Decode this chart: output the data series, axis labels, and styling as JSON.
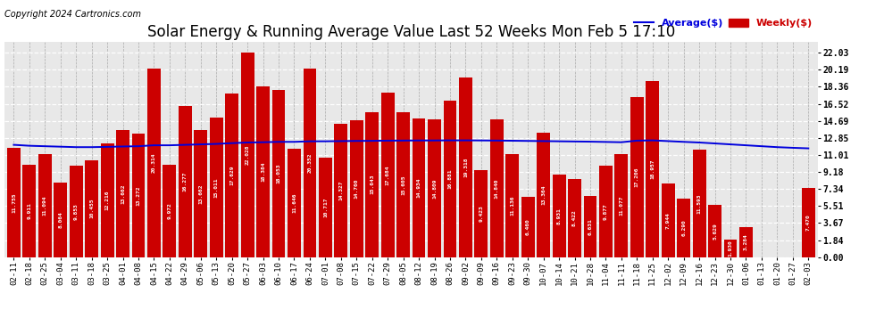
{
  "title": "Solar Energy & Running Average Value Last 52 Weeks Mon Feb 5 17:10",
  "copyright": "Copyright 2024 Cartronics.com",
  "categories": [
    "02-11",
    "02-18",
    "02-25",
    "03-04",
    "03-11",
    "03-18",
    "03-25",
    "04-01",
    "04-08",
    "04-15",
    "04-22",
    "04-29",
    "05-06",
    "05-13",
    "05-20",
    "05-27",
    "06-03",
    "06-10",
    "06-17",
    "06-24",
    "07-01",
    "07-08",
    "07-15",
    "07-22",
    "07-29",
    "08-05",
    "08-12",
    "08-19",
    "08-26",
    "09-02",
    "09-09",
    "09-16",
    "09-23",
    "09-30",
    "10-07",
    "10-14",
    "10-21",
    "10-28",
    "11-04",
    "11-11",
    "11-18",
    "11-25",
    "12-02",
    "12-09",
    "12-16",
    "12-23",
    "12-30",
    "01-06",
    "01-13",
    "01-20",
    "01-27",
    "02-03"
  ],
  "bar_values": [
    11.755,
    9.911,
    11.094,
    8.064,
    9.853,
    10.455,
    12.216,
    13.662,
    13.272,
    20.314,
    9.972,
    16.277,
    13.662,
    15.011,
    17.629,
    22.028,
    18.384,
    18.053,
    11.646,
    20.352,
    10.717,
    14.327,
    14.76,
    15.643,
    17.684,
    15.605,
    14.934,
    14.809,
    16.881,
    19.318,
    9.423,
    14.84,
    11.136,
    6.46,
    13.364,
    8.931,
    8.422,
    6.631,
    9.877,
    11.077,
    17.206,
    18.957,
    7.944,
    6.29,
    11.593,
    5.629,
    1.93,
    3.284,
    0.0,
    0.0,
    0.013,
    7.47
  ],
  "avg_values": [
    12.1,
    12.0,
    11.95,
    11.9,
    11.85,
    11.85,
    11.88,
    11.92,
    11.95,
    12.05,
    12.05,
    12.1,
    12.15,
    12.2,
    12.28,
    12.35,
    12.38,
    12.42,
    12.42,
    12.48,
    12.48,
    12.5,
    12.52,
    12.53,
    12.55,
    12.56,
    12.57,
    12.57,
    12.58,
    12.58,
    12.57,
    12.56,
    12.54,
    12.52,
    12.5,
    12.48,
    12.46,
    12.44,
    12.41,
    12.38,
    12.55,
    12.58,
    12.5,
    12.42,
    12.35,
    12.25,
    12.15,
    12.05,
    11.95,
    11.85,
    11.78,
    11.72
  ],
  "bar_color": "#cc0000",
  "avg_line_color": "#0000dd",
  "background_color": "#ffffff",
  "ytick_values": [
    0.0,
    1.84,
    3.67,
    5.51,
    7.34,
    9.18,
    11.01,
    12.85,
    14.69,
    16.52,
    18.36,
    20.19,
    22.03
  ],
  "legend_avg": "Average($)",
  "legend_weekly": "Weekly($)",
  "title_fontsize": 12,
  "bar_label_fontsize": 4.5,
  "tick_fontsize": 7,
  "copyright_fontsize": 7,
  "ymax": 23.2
}
